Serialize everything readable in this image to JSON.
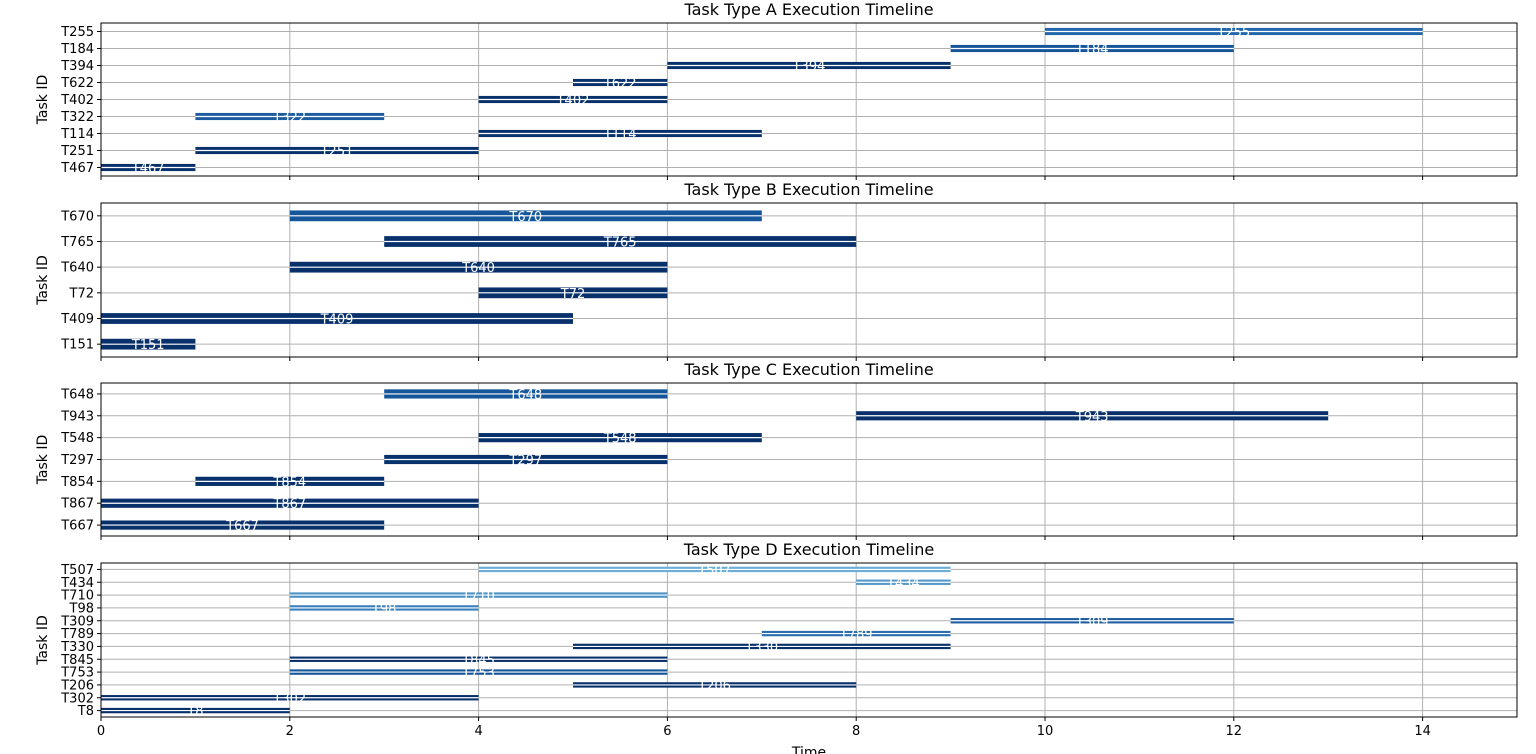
{
  "chart_data": [
    {
      "type": "bar",
      "orientation": "horizontal",
      "style": "gantt",
      "title": "Task Type A Execution Timeline",
      "ylabel": "Task ID",
      "xlabel": "",
      "xlim": [
        0,
        15
      ],
      "xticks": [
        "0",
        "2",
        "4",
        "6",
        "8",
        "10",
        "12",
        "14"
      ],
      "grid": true,
      "tasks": [
        {
          "id": "T467",
          "start": 0,
          "end": 1,
          "color": "#08306b"
        },
        {
          "id": "T251",
          "start": 1,
          "end": 4,
          "color": "#08306b"
        },
        {
          "id": "T114",
          "start": 4,
          "end": 7,
          "color": "#08306b"
        },
        {
          "id": "T322",
          "start": 1,
          "end": 3,
          "color": "#1c5c9f"
        },
        {
          "id": "T402",
          "start": 4,
          "end": 6,
          "color": "#08306b"
        },
        {
          "id": "T622",
          "start": 5,
          "end": 6,
          "color": "#08306b"
        },
        {
          "id": "T394",
          "start": 6,
          "end": 9,
          "color": "#08306b"
        },
        {
          "id": "T184",
          "start": 9,
          "end": 12,
          "color": "#15559a"
        },
        {
          "id": "T255",
          "start": 10,
          "end": 14,
          "color": "#2066ac"
        }
      ]
    },
    {
      "type": "bar",
      "orientation": "horizontal",
      "style": "gantt",
      "title": "Task Type B Execution Timeline",
      "ylabel": "Task ID",
      "xlabel": "",
      "xlim": [
        0,
        15
      ],
      "xticks": [
        "0",
        "2",
        "4",
        "6",
        "8",
        "10",
        "12",
        "14"
      ],
      "grid": true,
      "tasks": [
        {
          "id": "T151",
          "start": 0,
          "end": 1,
          "color": "#08306b"
        },
        {
          "id": "T409",
          "start": 0,
          "end": 5,
          "color": "#08306b"
        },
        {
          "id": "T72",
          "start": 4,
          "end": 6,
          "color": "#08306b"
        },
        {
          "id": "T640",
          "start": 2,
          "end": 6,
          "color": "#08306b"
        },
        {
          "id": "T765",
          "start": 3,
          "end": 8,
          "color": "#08306b"
        },
        {
          "id": "T670",
          "start": 2,
          "end": 7,
          "color": "#15559a"
        }
      ]
    },
    {
      "type": "bar",
      "orientation": "horizontal",
      "style": "gantt",
      "title": "Task Type C Execution Timeline",
      "ylabel": "Task ID",
      "xlabel": "",
      "xlim": [
        0,
        15
      ],
      "xticks": [
        "0",
        "2",
        "4",
        "6",
        "8",
        "10",
        "12",
        "14"
      ],
      "grid": true,
      "tasks": [
        {
          "id": "T667",
          "start": 0,
          "end": 3,
          "color": "#08306b"
        },
        {
          "id": "T867",
          "start": 0,
          "end": 4,
          "color": "#08306b"
        },
        {
          "id": "T854",
          "start": 1,
          "end": 3,
          "color": "#08306b"
        },
        {
          "id": "T297",
          "start": 3,
          "end": 6,
          "color": "#08306b"
        },
        {
          "id": "T548",
          "start": 4,
          "end": 7,
          "color": "#08306b"
        },
        {
          "id": "T943",
          "start": 8,
          "end": 13,
          "color": "#08306b"
        },
        {
          "id": "T648",
          "start": 3,
          "end": 6,
          "color": "#15559a"
        }
      ]
    },
    {
      "type": "bar",
      "orientation": "horizontal",
      "style": "gantt",
      "title": "Task Type D Execution Timeline",
      "ylabel": "Task ID",
      "xlabel": "Time",
      "xlim": [
        0,
        15
      ],
      "xticks": [
        "0",
        "2",
        "4",
        "6",
        "8",
        "10",
        "12",
        "14"
      ],
      "grid": true,
      "tasks": [
        {
          "id": "T8",
          "start": 0,
          "end": 2,
          "color": "#08306b"
        },
        {
          "id": "T302",
          "start": 0,
          "end": 4,
          "color": "#08306b"
        },
        {
          "id": "T206",
          "start": 5,
          "end": 8,
          "color": "#08306b"
        },
        {
          "id": "T753",
          "start": 2,
          "end": 6,
          "color": "#15559a"
        },
        {
          "id": "T845",
          "start": 2,
          "end": 6,
          "color": "#08306b"
        },
        {
          "id": "T330",
          "start": 5,
          "end": 9,
          "color": "#08306b"
        },
        {
          "id": "T789",
          "start": 7,
          "end": 9,
          "color": "#2b6eb0"
        },
        {
          "id": "T309",
          "start": 9,
          "end": 12,
          "color": "#1c5c9f"
        },
        {
          "id": "T98",
          "start": 2,
          "end": 4,
          "color": "#3a80bd"
        },
        {
          "id": "T710",
          "start": 2,
          "end": 6,
          "color": "#4a91c6"
        },
        {
          "id": "T434",
          "start": 8,
          "end": 9,
          "color": "#5599cb"
        },
        {
          "id": "T507",
          "start": 4,
          "end": 9,
          "color": "#6aaed6"
        }
      ]
    }
  ]
}
